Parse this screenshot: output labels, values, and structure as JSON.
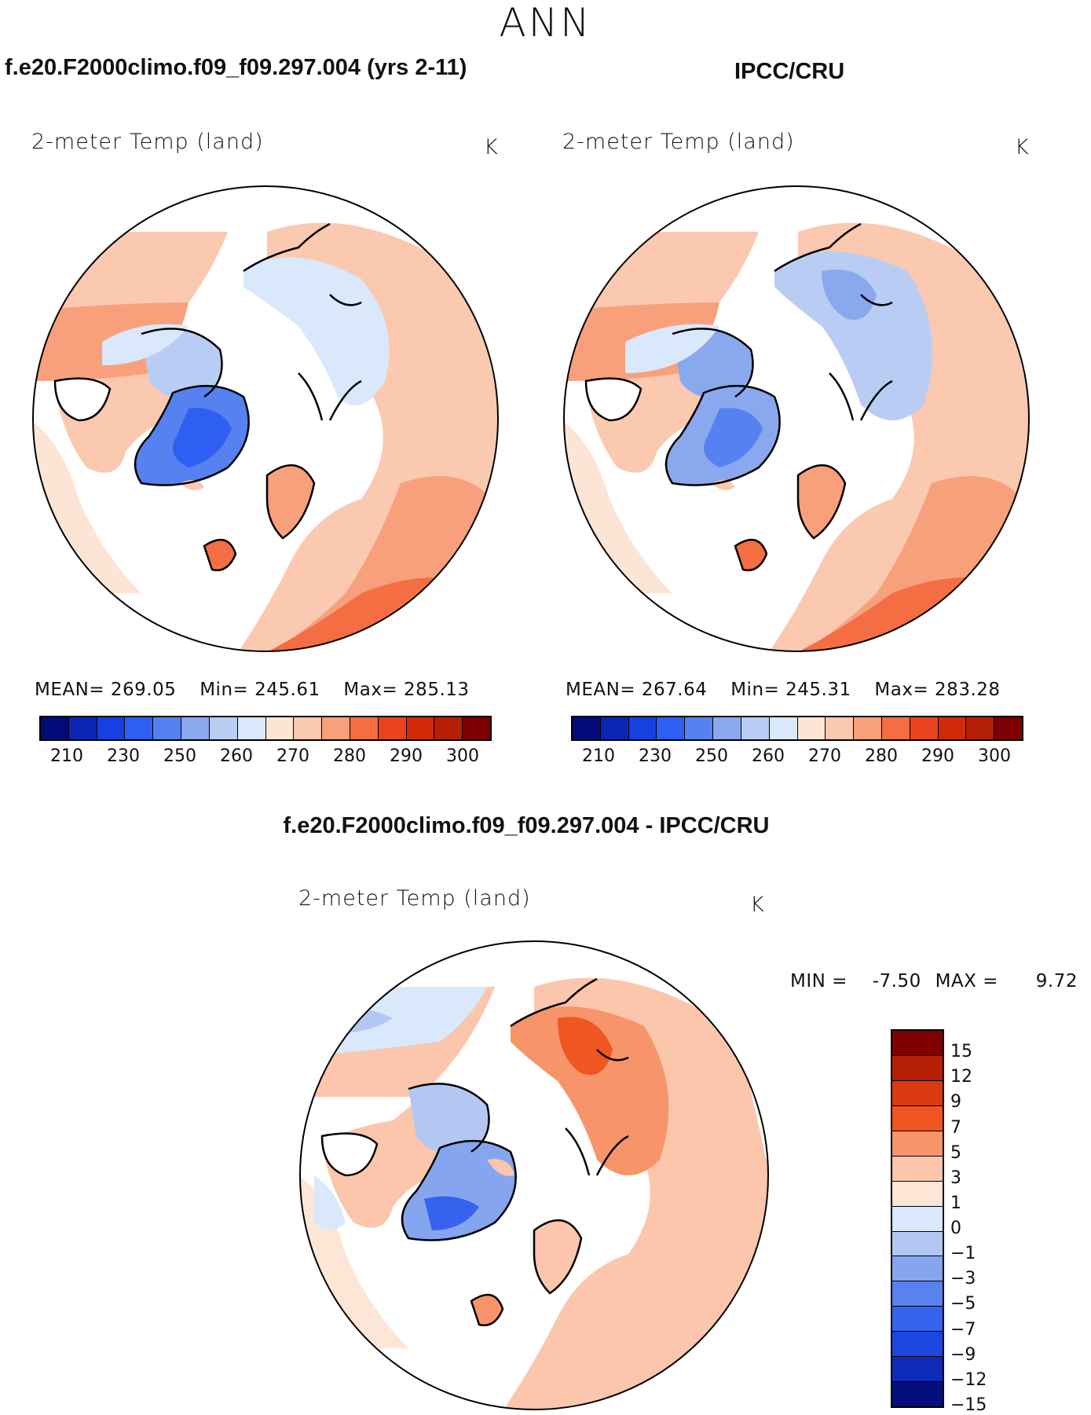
{
  "season": "ANN",
  "top_left": {
    "case_title": "f.e20.F2000climo.f09_f09.297.004 (yrs 2-11)",
    "variable": "2-meter Temp (land)",
    "units": "K",
    "mean_label": "MEAN=",
    "mean": "269.05",
    "min_label": "Min=",
    "min": "245.61",
    "max_label": "Max=",
    "max": "285.13"
  },
  "top_right": {
    "case_title": "IPCC/CRU",
    "variable": "2-meter Temp (land)",
    "units": "K",
    "mean_label": "MEAN=",
    "mean": "267.64",
    "min_label": "Min=",
    "min": "245.31",
    "max_label": "Max=",
    "max": "283.28"
  },
  "abs_colorbar": {
    "colors": [
      "#020a7a",
      "#0b25b4",
      "#1640e0",
      "#2f5ff2",
      "#5582f0",
      "#8aa8ee",
      "#b9cdf4",
      "#d9e8fa",
      "#fde5d6",
      "#fbc8b0",
      "#f8a07c",
      "#f46d43",
      "#e9431e",
      "#d42a0c",
      "#b51f06",
      "#7f0000"
    ],
    "ticks": [
      "210",
      "230",
      "250",
      "260",
      "270",
      "280",
      "290",
      "300"
    ]
  },
  "diff": {
    "title": "f.e20.F2000climo.f09_f09.297.004 - IPCC/CRU",
    "variable": "2-meter Temp (land)",
    "units": "K",
    "min_label": "MIN =",
    "min": "-7.50",
    "max_label": "MAX =",
    "max": "9.72"
  },
  "diff_colorbar": {
    "colors": [
      "#7f0000",
      "#b51f06",
      "#d93a10",
      "#f0561f",
      "#f7946a",
      "#fbc6ab",
      "#fde6d6",
      "#d9e8fa",
      "#b2c8f3",
      "#86a5ef",
      "#5a82ee",
      "#3563ee",
      "#1d46df",
      "#0d2bb8",
      "#040f7e"
    ],
    "ticks": [
      "15",
      "12",
      "9",
      "7",
      "5",
      "3",
      "1",
      "0",
      "−1",
      "−3",
      "−5",
      "−7",
      "−9",
      "−12",
      "−15"
    ]
  },
  "colors": {
    "cold_deep": "#2f5ff2",
    "cold": "#86a5ef",
    "cool": "#d9e8fa",
    "mild": "#fde5d6",
    "warm": "#fbc8b0",
    "warmer": "#f8a07c",
    "hot": "#f46d43"
  }
}
